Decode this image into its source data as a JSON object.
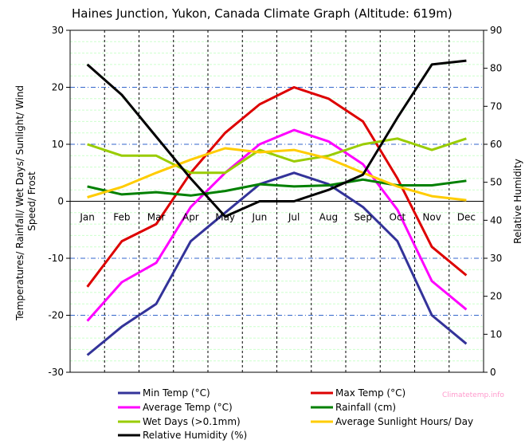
{
  "chart_data": {
    "type": "line",
    "title": "Haines Junction, Yukon, Canada Climate Graph (Altitude: 619m)",
    "watermark": "Climatetemp.info",
    "categories": [
      "Jan",
      "Feb",
      "Mar",
      "Apr",
      "May",
      "Jun",
      "Jul",
      "Aug",
      "Sep",
      "Oct",
      "Nov",
      "Dec"
    ],
    "y_left": {
      "label": "Temperatures/ Rainfall/ Wet Days/ Sunlight/ Wind Speed/ Frost",
      "label_lines": [
        "Temperatures/ Rainfall/ Wet Days/ Sunlight/ Wind",
        "Speed/ Frost"
      ],
      "range": [
        -30,
        30
      ],
      "ticks": [
        "-30",
        "-20",
        "-10",
        "0",
        "10",
        "20",
        "30"
      ]
    },
    "y_right": {
      "label": "Relative Humidity",
      "range": [
        0,
        90
      ],
      "ticks": [
        "0",
        "10",
        "20",
        "30",
        "40",
        "50",
        "60",
        "70",
        "80",
        "90"
      ]
    },
    "series": [
      {
        "name": "Min Temp (°C)",
        "axis": "left",
        "color": "#333399",
        "values": [
          -27,
          -22,
          -18,
          -7,
          -2,
          3,
          5,
          3,
          -1,
          -7,
          -20,
          -25
        ]
      },
      {
        "name": "Max Temp (°C)",
        "axis": "left",
        "color": "#dd0000",
        "values": [
          -15,
          -7,
          -4,
          5,
          12,
          17,
          20,
          18,
          14,
          4,
          -8,
          -13
        ]
      },
      {
        "name": "Average Temp (°C)",
        "axis": "left",
        "color": "#ff00ff",
        "values": [
          -21,
          -14.2,
          -10.8,
          -1,
          5,
          10,
          12.5,
          10.5,
          6.5,
          -1.5,
          -14,
          -19
        ]
      },
      {
        "name": "Rainfall (cm)",
        "axis": "left",
        "color": "#008000",
        "values": [
          2.6,
          1.2,
          1.6,
          1,
          1.8,
          3,
          2.6,
          2.8,
          3.8,
          2.8,
          2.8,
          3.6
        ]
      },
      {
        "name": "Wet Days (>0.1mm)",
        "axis": "left",
        "color": "#99cc00",
        "values": [
          10,
          8,
          8,
          5,
          5,
          9,
          7,
          8,
          10,
          11,
          9,
          11
        ]
      },
      {
        "name": "Average Sunlight Hours/ Day",
        "axis": "left",
        "color": "#ffcc00",
        "values": [
          0.7,
          2.5,
          5,
          7.3,
          9.3,
          8.6,
          9,
          7.5,
          5,
          2.6,
          0.9,
          0.2
        ]
      },
      {
        "name": "Relative Humidity (%)",
        "axis": "right",
        "color": "#000000",
        "values": [
          81,
          73,
          62,
          51,
          41,
          45,
          45,
          48,
          52,
          67,
          81,
          82
        ]
      }
    ],
    "legend_placement": "bottom",
    "grid": true
  }
}
